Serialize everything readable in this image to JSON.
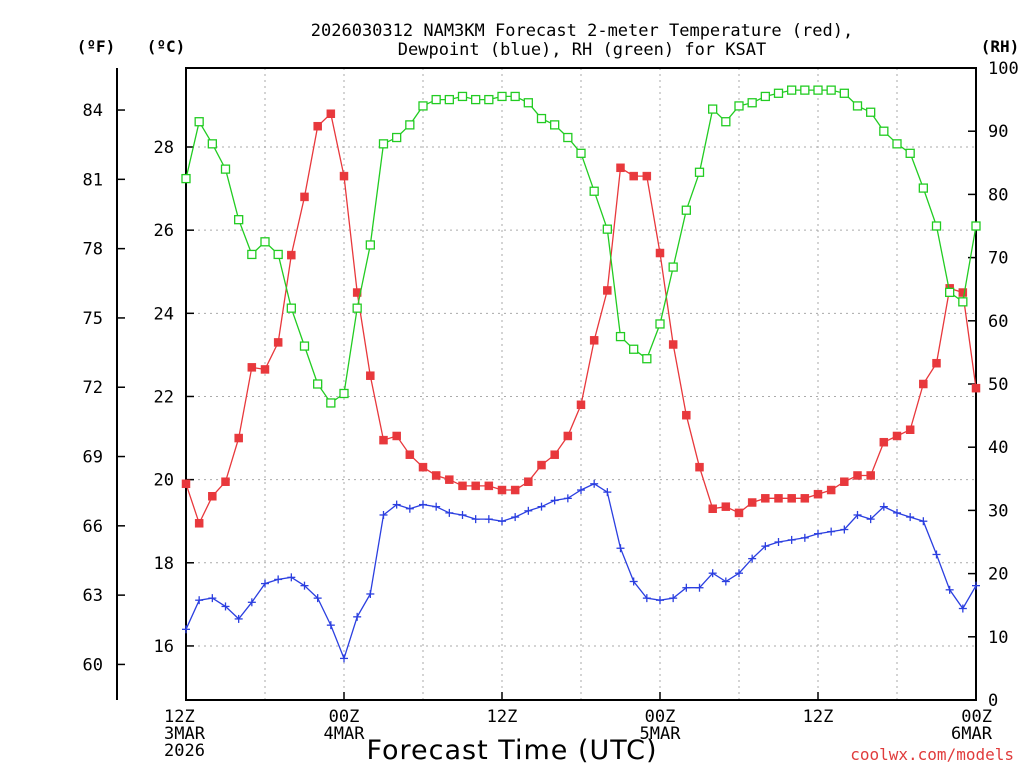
{
  "chart_data": {
    "type": "line",
    "title_line1": "2026030312 NAM3KM Forecast 2-meter Temperature (red),",
    "title_line2": "Dewpoint (blue), RH (green) for KSAT",
    "xlabel": "Forecast Time (UTC)",
    "credit": "coolwx.com/models",
    "units": {
      "fahrenheit": "(ºF)",
      "celsius": "(ºC)",
      "rh": "(RH)"
    },
    "x_hours": [
      0,
      1,
      2,
      3,
      4,
      5,
      6,
      7,
      8,
      9,
      10,
      11,
      12,
      13,
      14,
      15,
      16,
      17,
      18,
      19,
      20,
      21,
      22,
      23,
      24,
      25,
      26,
      27,
      28,
      29,
      30,
      31,
      32,
      33,
      34,
      35,
      36,
      37,
      38,
      39,
      40,
      41,
      42,
      43,
      44,
      45,
      46,
      47,
      48,
      49,
      50,
      51,
      52,
      53,
      54,
      55,
      56,
      57,
      58,
      59,
      60
    ],
    "x_range_hours": [
      0,
      60
    ],
    "x_tick_hours": [
      0,
      12,
      24,
      36,
      48,
      60
    ],
    "x_tick_labels": [
      [
        "12Z",
        "3MAR",
        "2026"
      ],
      [
        "00Z",
        "4MAR"
      ],
      [
        "12Z"
      ],
      [
        "00Z",
        "5MAR"
      ],
      [
        "12Z"
      ],
      [
        "00Z",
        "6MAR"
      ]
    ],
    "celsius_range": [
      14.7,
      29.9
    ],
    "celsius_ticks": [
      "16",
      "18",
      "20",
      "22",
      "24",
      "26",
      "28"
    ],
    "fahrenheit_ticks": [
      "60",
      "63",
      "66",
      "69",
      "72",
      "75",
      "78",
      "81",
      "84"
    ],
    "rh_range": [
      0,
      100
    ],
    "rh_ticks": [
      "0",
      "10",
      "20",
      "30",
      "40",
      "50",
      "60",
      "70",
      "80",
      "90",
      "100"
    ],
    "series": [
      {
        "color": "#e8383c",
        "marker": "filled-square",
        "axis": "celsius",
        "values": [
          19.9,
          18.95,
          19.6,
          19.95,
          21.0,
          22.7,
          22.65,
          23.3,
          25.4,
          26.8,
          28.5,
          28.8,
          27.3,
          24.5,
          22.5,
          20.95,
          21.05,
          20.6,
          20.3,
          20.1,
          20.0,
          19.85,
          19.85,
          19.85,
          19.75,
          19.75,
          19.95,
          20.35,
          20.6,
          21.05,
          21.8,
          23.35,
          24.55,
          27.5,
          27.3,
          27.3,
          25.45,
          23.25,
          21.55,
          20.3,
          19.3,
          19.35,
          19.2,
          19.45,
          19.55,
          19.55,
          19.55,
          19.55,
          19.65,
          19.75,
          19.95,
          20.1,
          20.1,
          20.9,
          21.05,
          21.2,
          22.3,
          22.8,
          24.6,
          24.5,
          22.2
        ]
      },
      {
        "color": "#2b3fe0",
        "marker": "plus",
        "axis": "celsius",
        "values": [
          16.4,
          17.1,
          17.15,
          16.95,
          16.65,
          17.05,
          17.5,
          17.6,
          17.65,
          17.45,
          17.15,
          16.5,
          15.7,
          16.7,
          17.25,
          19.15,
          19.4,
          19.3,
          19.4,
          19.35,
          19.2,
          19.15,
          19.05,
          19.05,
          19.0,
          19.1,
          19.25,
          19.35,
          19.5,
          19.55,
          19.75,
          19.9,
          19.7,
          18.35,
          17.55,
          17.15,
          17.1,
          17.15,
          17.4,
          17.4,
          17.75,
          17.55,
          17.75,
          18.1,
          18.4,
          18.5,
          18.55,
          18.6,
          18.7,
          18.75,
          18.8,
          19.15,
          19.05,
          19.35,
          19.2,
          19.1,
          19.0,
          18.2,
          17.35,
          16.9,
          17.45
        ]
      },
      {
        "color": "#22cc22",
        "marker": "open-square",
        "axis": "rh",
        "values": [
          82.5,
          91.5,
          88.0,
          84.0,
          76.0,
          70.5,
          72.5,
          70.5,
          62.0,
          56.0,
          50.0,
          47.0,
          48.5,
          62.0,
          72.0,
          88.0,
          89.0,
          91.0,
          94.0,
          95.0,
          95.0,
          95.5,
          95.0,
          95.0,
          95.5,
          95.5,
          94.5,
          92.0,
          91.0,
          89.0,
          86.5,
          80.5,
          74.5,
          57.5,
          55.5,
          54.0,
          59.5,
          68.5,
          77.5,
          83.5,
          93.5,
          91.5,
          94.0,
          94.5,
          95.5,
          96.0,
          96.5,
          96.5,
          96.5,
          96.5,
          96.0,
          94.0,
          93.0,
          90.0,
          88.0,
          86.5,
          81.0,
          75.0,
          64.5,
          63.0,
          75.0
        ]
      }
    ]
  }
}
